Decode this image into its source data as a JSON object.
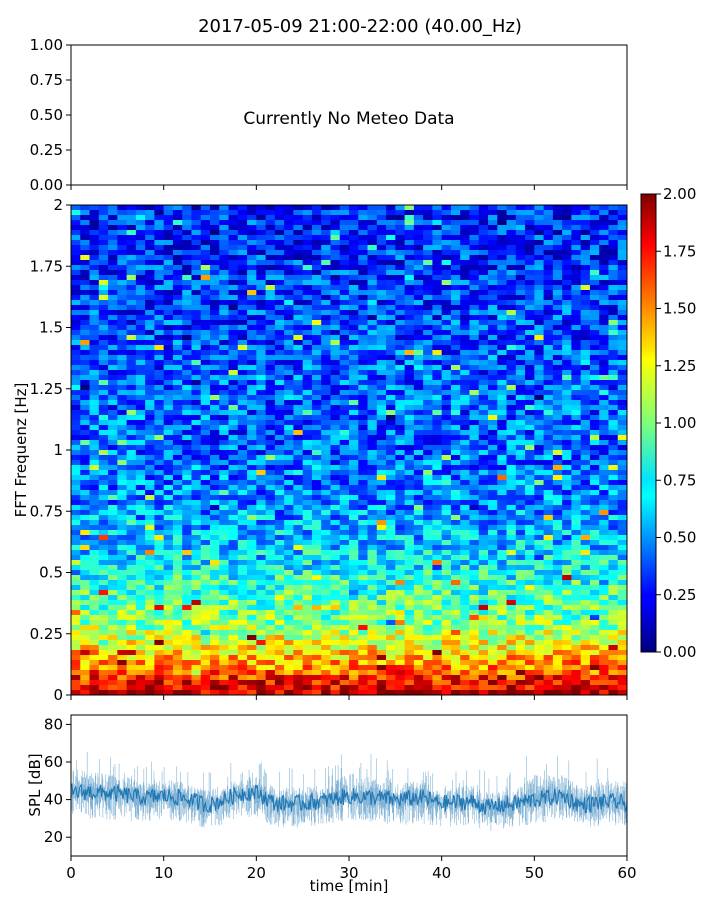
{
  "chart_data": [
    {
      "type": "line",
      "title": "2017-05-09 21:00-22:00 (40.00_Hz)",
      "xlim": [
        0,
        60
      ],
      "ylim": [
        0,
        1
      ],
      "yticks": [
        "0.00",
        "0.25",
        "0.50",
        "0.75",
        "1.00"
      ],
      "annotation": "Currently No Meteo Data",
      "series": []
    },
    {
      "type": "heatmap",
      "ylabel": "FFT Frequenz [Hz]",
      "xlim": [
        0,
        60
      ],
      "ylim": [
        0,
        2
      ],
      "yticks": [
        "0",
        "0.25",
        "0.5",
        "0.75",
        "1",
        "1.25",
        "1.5",
        "1.75",
        "2"
      ],
      "value_range": [
        0,
        2
      ],
      "colormap": "jet",
      "colorbar_ticks": [
        "0.00",
        "0.25",
        "0.50",
        "0.75",
        "1.00",
        "1.25",
        "1.50",
        "1.75",
        "2.00"
      ],
      "description_profile": {
        "frequency_hz": [
          0.0,
          0.05,
          0.1,
          0.2,
          0.3,
          0.45,
          0.6,
          0.75,
          1.0,
          1.25,
          1.5,
          1.75,
          2.0
        ],
        "typical_value": [
          1.9,
          1.75,
          1.55,
          1.25,
          1.0,
          0.85,
          0.65,
          0.55,
          0.45,
          0.45,
          0.4,
          0.35,
          0.3
        ]
      }
    },
    {
      "type": "line",
      "xlabel": "time [min]",
      "ylabel": "SPL [dB]",
      "xlim": [
        0,
        60
      ],
      "ylim": [
        10,
        85
      ],
      "xticks": [
        "0",
        "10",
        "20",
        "30",
        "40",
        "50",
        "60"
      ],
      "yticks": [
        "20",
        "40",
        "60",
        "80"
      ],
      "series_color": "#1f77b4",
      "series_envelope": {
        "x": [
          0,
          2,
          5,
          8,
          10,
          12,
          15,
          18,
          20,
          22,
          25,
          28,
          30,
          33,
          35,
          38,
          40,
          43,
          45,
          48,
          50,
          53,
          55,
          58,
          60
        ],
        "center": [
          44,
          44,
          43,
          41,
          42,
          41,
          37,
          43,
          44,
          38,
          38,
          40,
          42,
          41,
          40,
          41,
          38,
          39,
          36,
          38,
          40,
          42,
          37,
          39,
          38
        ],
        "low": [
          30,
          30,
          29,
          28,
          29,
          28,
          24,
          30,
          31,
          25,
          25,
          27,
          29,
          28,
          26,
          27,
          25,
          26,
          23,
          25,
          27,
          29,
          25,
          26,
          26
        ],
        "high": [
          72,
          68,
          66,
          60,
          62,
          60,
          55,
          61,
          63,
          56,
          58,
          60,
          70,
          64,
          60,
          62,
          57,
          59,
          55,
          56,
          70,
          68,
          58,
          65,
          62
        ]
      }
    }
  ],
  "colors": {
    "series": "#1f77b4",
    "axes": "#000000",
    "background": "#ffffff"
  }
}
